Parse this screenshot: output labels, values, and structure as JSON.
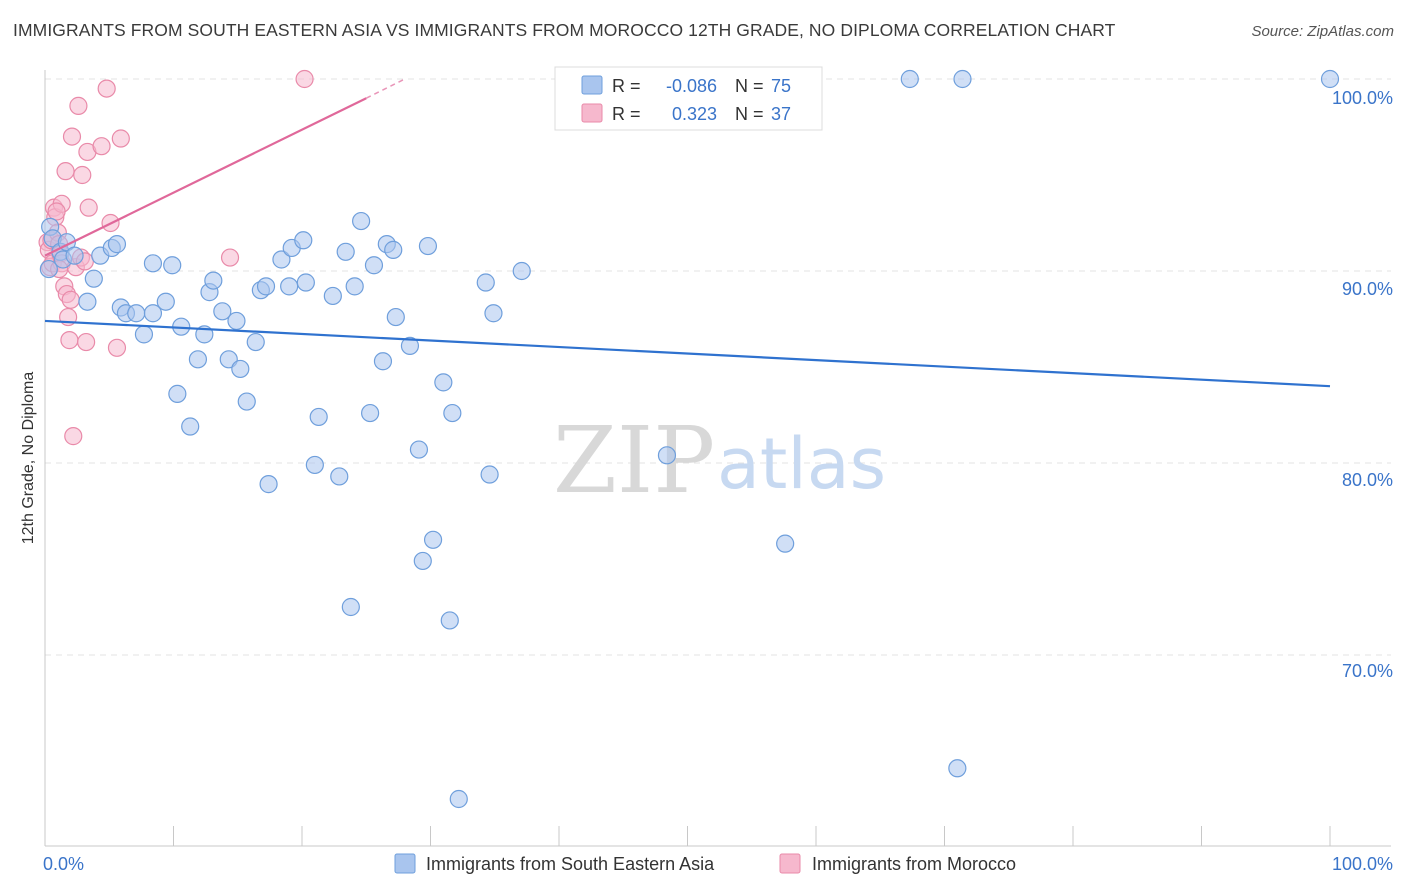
{
  "title": "IMMIGRANTS FROM SOUTH EASTERN ASIA VS IMMIGRANTS FROM MOROCCO 12TH GRADE, NO DIPLOMA CORRELATION CHART",
  "source": "Source: ZipAtlas.com",
  "watermark": {
    "zip": "ZIP",
    "atlas": "atlas"
  },
  "legend_box": {
    "rows": [
      {
        "r_label": "R =",
        "r_value": "-0.086",
        "n_label": "N =",
        "n_value": "75"
      },
      {
        "r_label": "R =",
        "r_value": "0.323",
        "n_label": "N =",
        "n_value": "37"
      }
    ]
  },
  "bottom_legend": [
    {
      "label": "Immigrants from South Eastern Asia"
    },
    {
      "label": "Immigrants from Morocco"
    }
  ],
  "colors": {
    "blue_fill": "#a9c5ee",
    "blue_stroke": "#6f9fdc",
    "blue_line": "#2f72cf",
    "pink_fill": "#f6b8cd",
    "pink_stroke": "#e98aa9",
    "pink_line": "#e0689a",
    "value_text": "#3a74c9",
    "grid": "#e3e3e3"
  },
  "chart_data": {
    "type": "scatter",
    "title": "IMMIGRANTS FROM SOUTH EASTERN ASIA VS IMMIGRANTS FROM MOROCCO 12TH GRADE, NO DIPLOMA CORRELATION CHART",
    "xlabel": "",
    "ylabel": "12th Grade, No Diploma",
    "x_tick_labels": [
      "0.0%",
      "100.0%"
    ],
    "y_tick_labels": [
      "100.0%",
      "90.0%",
      "80.0%",
      "70.0%"
    ],
    "xlim": [
      0,
      100
    ],
    "ylim": [
      60.7,
      101.6
    ],
    "grid": true,
    "legend_position": "bottom",
    "series": [
      {
        "name": "Immigrants from South Eastern Asia",
        "r": -0.086,
        "n": 75,
        "trend": [
          [
            0,
            87.4
          ],
          [
            100,
            84.0
          ]
        ],
        "points": [
          [
            0.4,
            92.3
          ],
          [
            0.6,
            91.7
          ],
          [
            0.3,
            90.1
          ],
          [
            1.2,
            91.0
          ],
          [
            1.4,
            90.6
          ],
          [
            1.7,
            91.5
          ],
          [
            2.3,
            90.8
          ],
          [
            3.3,
            88.4
          ],
          [
            3.8,
            89.6
          ],
          [
            4.3,
            90.8
          ],
          [
            5.2,
            91.2
          ],
          [
            5.6,
            91.4
          ],
          [
            5.9,
            88.1
          ],
          [
            6.3,
            87.8
          ],
          [
            7.1,
            87.8
          ],
          [
            7.7,
            86.7
          ],
          [
            8.4,
            87.8
          ],
          [
            8.4,
            90.4
          ],
          [
            9.4,
            88.4
          ],
          [
            9.9,
            90.3
          ],
          [
            10.3,
            83.6
          ],
          [
            10.6,
            87.1
          ],
          [
            11.3,
            81.9
          ],
          [
            11.9,
            85.4
          ],
          [
            12.4,
            86.7
          ],
          [
            12.8,
            88.9
          ],
          [
            13.1,
            89.5
          ],
          [
            13.8,
            87.9
          ],
          [
            14.3,
            85.4
          ],
          [
            14.9,
            87.4
          ],
          [
            15.2,
            84.9
          ],
          [
            15.7,
            83.2
          ],
          [
            16.4,
            86.3
          ],
          [
            16.8,
            89.0
          ],
          [
            17.2,
            89.2
          ],
          [
            17.4,
            78.9
          ],
          [
            18.4,
            90.6
          ],
          [
            19.0,
            89.2
          ],
          [
            19.2,
            91.2
          ],
          [
            20.1,
            91.6
          ],
          [
            20.3,
            89.4
          ],
          [
            21.0,
            79.9
          ],
          [
            21.3,
            82.4
          ],
          [
            22.4,
            88.7
          ],
          [
            22.9,
            79.3
          ],
          [
            23.4,
            91.0
          ],
          [
            23.8,
            72.5
          ],
          [
            24.1,
            89.2
          ],
          [
            24.6,
            92.6
          ],
          [
            25.3,
            82.6
          ],
          [
            25.6,
            90.3
          ],
          [
            26.3,
            85.3
          ],
          [
            26.6,
            91.4
          ],
          [
            27.1,
            91.1
          ],
          [
            27.3,
            87.6
          ],
          [
            28.4,
            86.1
          ],
          [
            29.1,
            80.7
          ],
          [
            29.4,
            74.9
          ],
          [
            29.8,
            91.3
          ],
          [
            30.2,
            76.0
          ],
          [
            31.0,
            84.2
          ],
          [
            31.5,
            71.8
          ],
          [
            31.7,
            82.6
          ],
          [
            32.2,
            62.5
          ],
          [
            34.3,
            89.4
          ],
          [
            34.6,
            79.4
          ],
          [
            34.9,
            87.8
          ],
          [
            37.1,
            90.0
          ],
          [
            48.4,
            80.4
          ],
          [
            57.6,
            75.8
          ],
          [
            67.3,
            100.0
          ],
          [
            71.0,
            64.1
          ],
          [
            71.4,
            100.0
          ],
          [
            100.0,
            100.0
          ],
          [
            43.0,
            100.0
          ]
        ]
      },
      {
        "name": "Immigrants from Morocco",
        "r": 0.323,
        "n": 37,
        "trend": [
          [
            0,
            90.8
          ],
          [
            25,
            99.0
          ]
        ],
        "trend_dashed": [
          [
            25,
            99.0
          ],
          [
            28,
            100.0
          ]
        ],
        "points": [
          [
            0.2,
            91.5
          ],
          [
            0.3,
            91.1
          ],
          [
            0.4,
            90.2
          ],
          [
            0.5,
            91.6
          ],
          [
            0.6,
            90.4
          ],
          [
            0.7,
            93.3
          ],
          [
            0.8,
            92.8
          ],
          [
            1.0,
            92.0
          ],
          [
            1.1,
            91.4
          ],
          [
            1.2,
            90.9
          ],
          [
            1.3,
            90.4
          ],
          [
            1.3,
            93.5
          ],
          [
            1.5,
            89.2
          ],
          [
            1.6,
            95.2
          ],
          [
            1.7,
            88.8
          ],
          [
            1.8,
            87.6
          ],
          [
            1.9,
            86.4
          ],
          [
            2.0,
            88.5
          ],
          [
            2.1,
            97.0
          ],
          [
            2.4,
            90.2
          ],
          [
            2.6,
            98.6
          ],
          [
            2.8,
            90.7
          ],
          [
            2.9,
            95.0
          ],
          [
            3.1,
            90.5
          ],
          [
            3.2,
            86.3
          ],
          [
            3.3,
            96.2
          ],
          [
            3.4,
            93.3
          ],
          [
            4.4,
            96.5
          ],
          [
            4.8,
            99.5
          ],
          [
            5.1,
            92.5
          ],
          [
            5.6,
            86.0
          ],
          [
            5.9,
            96.9
          ],
          [
            14.4,
            90.7
          ],
          [
            20.2,
            100.0
          ],
          [
            2.2,
            81.4
          ],
          [
            0.9,
            93.1
          ],
          [
            1.1,
            90.1
          ]
        ]
      }
    ]
  }
}
